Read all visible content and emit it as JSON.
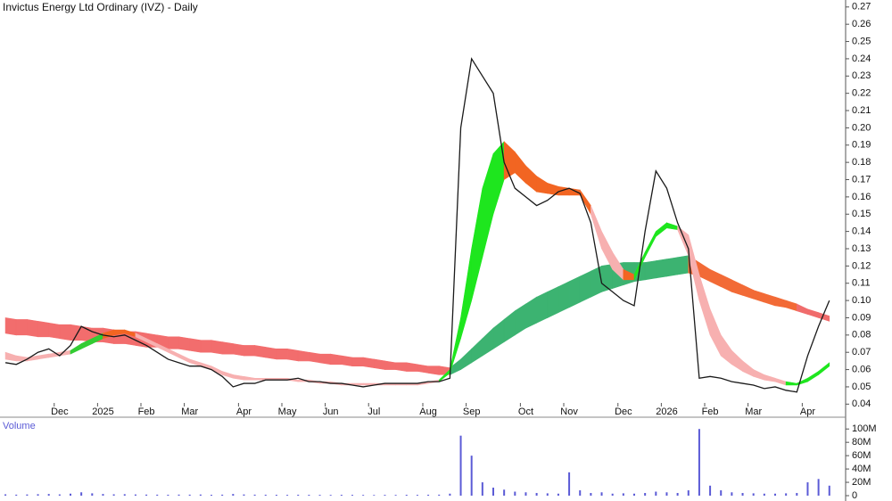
{
  "chart_data": {
    "type": "line",
    "title": "Invictus Energy Ltd Ordinary (IVZ) - Daily",
    "categories": [
      null,
      null,
      null,
      null,
      null,
      "Dec",
      null,
      null,
      null,
      "2025",
      null,
      null,
      null,
      "Feb",
      null,
      null,
      null,
      "Mar",
      null,
      null,
      null,
      null,
      "Apr",
      null,
      null,
      null,
      "May",
      null,
      null,
      null,
      "Jun",
      null,
      null,
      null,
      "Jul",
      null,
      null,
      null,
      null,
      "Aug",
      null,
      null,
      null,
      "Sep",
      null,
      null,
      null,
      null,
      "Oct",
      null,
      null,
      null,
      "Nov",
      null,
      null,
      null,
      null,
      "Dec",
      null,
      null,
      null,
      "2026",
      null,
      null,
      null,
      "Feb",
      null,
      null,
      null,
      "Mar",
      null,
      null,
      null,
      null,
      "Apr",
      null,
      null,
      null
    ],
    "series": [
      {
        "color": "#1a1a1a",
        "values": [
          0.064,
          0.063,
          0.066,
          0.07,
          0.072,
          0.068,
          0.074,
          0.085,
          0.082,
          0.08,
          0.079,
          0.08,
          0.077,
          0.074,
          0.07,
          0.066,
          0.064,
          0.062,
          0.062,
          0.06,
          0.056,
          0.05,
          0.052,
          0.052,
          0.054,
          0.054,
          0.054,
          0.055,
          0.053,
          0.053,
          0.052,
          0.052,
          0.051,
          0.05,
          0.051,
          0.052,
          0.052,
          0.052,
          0.052,
          0.053,
          0.053,
          0.055,
          0.2,
          0.24,
          0.23,
          0.22,
          0.18,
          0.165,
          0.16,
          0.155,
          0.158,
          0.163,
          0.165,
          0.162,
          0.145,
          0.11,
          0.105,
          0.1,
          0.097,
          0.14,
          0.175,
          0.165,
          0.145,
          0.13,
          0.055,
          0.056,
          0.055,
          0.053,
          0.052,
          0.051,
          0.049,
          0.05,
          0.048,
          0.047,
          0.068,
          0.085,
          0.1,
          null
        ]
      }
    ],
    "ribbons": [
      {
        "upper": [
          0.09,
          0.089,
          0.089,
          0.088,
          0.087,
          0.086,
          0.086,
          0.085,
          0.084,
          0.084,
          0.083,
          0.082,
          0.082,
          0.081,
          0.08,
          0.079,
          0.079,
          0.078,
          0.077,
          0.077,
          0.076,
          0.075,
          0.074,
          0.074,
          0.073,
          0.072,
          0.072,
          0.071,
          0.07,
          0.069,
          0.069,
          0.068,
          0.067,
          0.067,
          0.066,
          0.065,
          0.064,
          0.064,
          0.063,
          0.062,
          0.062,
          0.061,
          0.066,
          0.072,
          0.078,
          0.084,
          0.089,
          0.094,
          0.098,
          0.102,
          0.105,
          0.108,
          0.111,
          0.114,
          0.117,
          0.12,
          0.121,
          0.122,
          0.122,
          0.122,
          0.123,
          0.124,
          0.125,
          0.126,
          0.122,
          0.118,
          0.115,
          0.112,
          0.109,
          0.106,
          0.104,
          0.102,
          0.1,
          0.098,
          0.095,
          0.093,
          0.091,
          null
        ],
        "lower": [
          0.081,
          0.08,
          0.08,
          0.079,
          0.079,
          0.078,
          0.077,
          0.077,
          0.076,
          0.076,
          0.075,
          0.075,
          0.074,
          0.073,
          0.073,
          0.072,
          0.072,
          0.071,
          0.07,
          0.07,
          0.069,
          0.069,
          0.068,
          0.068,
          0.067,
          0.066,
          0.066,
          0.065,
          0.065,
          0.064,
          0.063,
          0.063,
          0.062,
          0.062,
          0.061,
          0.06,
          0.06,
          0.059,
          0.059,
          0.058,
          0.057,
          0.057,
          0.06,
          0.064,
          0.068,
          0.072,
          0.076,
          0.08,
          0.084,
          0.087,
          0.09,
          0.093,
          0.096,
          0.099,
          0.102,
          0.105,
          0.107,
          0.109,
          0.111,
          0.112,
          0.113,
          0.114,
          0.115,
          0.116,
          0.114,
          0.111,
          0.108,
          0.105,
          0.103,
          0.101,
          0.099,
          0.097,
          0.096,
          0.094,
          0.092,
          0.09,
          0.088,
          null
        ],
        "colors": [
          "#f26d6d",
          "#f26d6d",
          "#f26d6d",
          "#f26d6d",
          "#f26d6d",
          "#f26d6d",
          "#f26d6d",
          "#f26d6d",
          "#f26d6d",
          "#f26d6d",
          "#f26d6d",
          "#f26d6d",
          "#f26d6d",
          "#f26d6d",
          "#f26d6d",
          "#f26d6d",
          "#f26d6d",
          "#f26d6d",
          "#f26d6d",
          "#f26d6d",
          "#f26d6d",
          "#f26d6d",
          "#f26d6d",
          "#f26d6d",
          "#f26d6d",
          "#f26d6d",
          "#f26d6d",
          "#f26d6d",
          "#f26d6d",
          "#f26d6d",
          "#f26d6d",
          "#f26d6d",
          "#f26d6d",
          "#f26d6d",
          "#f26d6d",
          "#f26d6d",
          "#f26d6d",
          "#f26d6d",
          "#f26d6d",
          "#f26d6d",
          "#f26d6d",
          "#3cb371",
          "#3cb371",
          "#3cb371",
          "#3cb371",
          "#3cb371",
          "#3cb371",
          "#3cb371",
          "#3cb371",
          "#3cb371",
          "#3cb371",
          "#3cb371",
          "#3cb371",
          "#3cb371",
          "#3cb371",
          "#3cb371",
          "#3cb371",
          "#3cb371",
          "#3cb371",
          "#3cb371",
          "#3cb371",
          "#3cb371",
          "#3cb371",
          "#f26a36",
          "#f26a36",
          "#f26a36",
          "#f26a36",
          "#f26a36",
          "#f26a36",
          "#f26a36",
          "#f26a36",
          "#f26a36",
          "#f26a36",
          "#f06c6c",
          "#f06c6c",
          "#f06c6c",
          "#f06c6c",
          "#f06c6c"
        ]
      },
      {
        "upper": [
          0.07,
          0.068,
          0.067,
          0.068,
          0.069,
          0.07,
          0.071,
          0.075,
          0.078,
          0.081,
          0.083,
          0.083,
          0.081,
          0.078,
          0.075,
          0.072,
          0.069,
          0.066,
          0.064,
          0.062,
          0.059,
          0.057,
          0.056,
          0.055,
          0.055,
          0.055,
          0.055,
          0.054,
          0.054,
          0.053,
          0.053,
          0.052,
          0.052,
          0.052,
          0.052,
          0.052,
          0.052,
          0.052,
          0.052,
          0.053,
          0.054,
          0.06,
          0.09,
          0.13,
          0.165,
          0.185,
          0.192,
          0.186,
          0.178,
          0.172,
          0.168,
          0.166,
          0.165,
          0.164,
          0.155,
          0.14,
          0.128,
          0.118,
          0.115,
          0.128,
          0.14,
          0.145,
          0.143,
          0.138,
          0.115,
          0.095,
          0.08,
          0.071,
          0.065,
          0.06,
          0.057,
          0.055,
          0.053,
          0.052,
          0.055,
          0.059,
          0.064,
          null
        ],
        "lower": [
          0.066,
          0.065,
          0.065,
          0.066,
          0.067,
          0.068,
          0.069,
          0.072,
          0.075,
          0.078,
          0.08,
          0.081,
          0.079,
          0.076,
          0.073,
          0.07,
          0.067,
          0.064,
          0.062,
          0.06,
          0.057,
          0.055,
          0.054,
          0.054,
          0.054,
          0.054,
          0.054,
          0.053,
          0.053,
          0.052,
          0.052,
          0.051,
          0.051,
          0.051,
          0.051,
          0.051,
          0.051,
          0.051,
          0.051,
          0.052,
          0.053,
          0.058,
          0.078,
          0.1,
          0.125,
          0.15,
          0.17,
          0.174,
          0.168,
          0.163,
          0.162,
          0.161,
          0.161,
          0.161,
          0.15,
          0.13,
          0.118,
          0.112,
          0.112,
          0.125,
          0.137,
          0.142,
          0.141,
          0.126,
          0.1,
          0.08,
          0.068,
          0.063,
          0.059,
          0.056,
          0.054,
          0.053,
          0.051,
          0.051,
          0.053,
          0.057,
          0.062,
          null
        ],
        "colors": [
          "#f7b0b0",
          "#f7b0b0",
          "#f7b0b0",
          "#f7b0b0",
          "#f7b0b0",
          "#f7b0b0",
          "#33cc33",
          "#33cc33",
          "#33cc33",
          "#f26522",
          "#f26522",
          "#f26522",
          "#f7b0b0",
          "#f7b0b0",
          "#f7b0b0",
          "#f7b0b0",
          "#f7b0b0",
          "#f7b0b0",
          "#f7b0b0",
          "#f7b0b0",
          "#f7b0b0",
          "#f7b0b0",
          "#f7b0b0",
          "#f7b0b0",
          "#f7b0b0",
          "#f7b0b0",
          "#f7b0b0",
          "#f7b0b0",
          "#f7b0b0",
          "#f7b0b0",
          "#f7b0b0",
          "#f7b0b0",
          "#f7b0b0",
          "#f7b0b0",
          "#f7b0b0",
          "#f7b0b0",
          "#f7b0b0",
          "#f7b0b0",
          "#f7b0b0",
          "#f7b0b0",
          "#1ee61e",
          "#1ee61e",
          "#1ee61e",
          "#1ee61e",
          "#1ee61e",
          "#1ee61e",
          "#f26522",
          "#f26522",
          "#f26522",
          "#f26522",
          "#f26522",
          "#f26522",
          "#f26522",
          "#f26522",
          "#f7b0b0",
          "#f7b0b0",
          "#f7b0b0",
          "#f26522",
          "#1ee61e",
          "#1ee61e",
          "#1ee61e",
          "#1ee61e",
          "#f7b0b0",
          "#f7b0b0",
          "#f7b0b0",
          "#f7b0b0",
          "#f7b0b0",
          "#f7b0b0",
          "#f7b0b0",
          "#f7b0b0",
          "#f7b0b0",
          "#f7b0b0",
          "#1ee61e",
          "#1ee61e",
          "#1ee61e",
          "#1ee61e",
          "#1ee61e",
          "#1ee61e"
        ]
      }
    ],
    "ylim": [
      0.035,
      0.273
    ],
    "yticks": [
      0.04,
      0.05,
      0.06,
      0.07,
      0.08,
      0.09,
      {
        "value": 0.1,
        "label": "0.10"
      },
      0.11,
      0.12,
      0.13,
      0.14,
      0.15,
      0.16,
      0.17,
      0.18,
      0.19,
      {
        "value": 0.2,
        "label": "0.20"
      },
      0.21,
      0.22,
      0.23,
      0.24,
      0.25,
      0.26,
      0.27
    ],
    "volume": {
      "label": "Volume",
      "color": "#5b5bd6",
      "values": [
        2000000,
        1500000,
        1800000,
        2200000,
        2500000,
        1900000,
        3000000,
        5000000,
        3500000,
        2500000,
        2000000,
        2200000,
        1800000,
        1600000,
        1500000,
        1400000,
        1600000,
        1500000,
        1700000,
        1300000,
        1500000,
        2500000,
        1800000,
        1500000,
        1400000,
        1300000,
        1200000,
        1400000,
        1300000,
        1200000,
        1100000,
        1300000,
        1200000,
        1100000,
        1000000,
        1200000,
        1100000,
        1300000,
        1200000,
        1400000,
        1500000,
        3000000,
        90000000,
        60000000,
        20000000,
        12000000,
        9000000,
        6000000,
        5000000,
        4000000,
        3500000,
        3000000,
        35000000,
        8000000,
        4000000,
        5000000,
        3000000,
        3500000,
        3000000,
        4000000,
        6000000,
        5000000,
        4000000,
        8000000,
        100000000,
        15000000,
        8000000,
        5000000,
        4000000,
        3500000,
        3000000,
        3000000,
        3500000,
        4000000,
        20000000,
        25000000,
        15000000,
        null
      ],
      "ylim": [
        0,
        115000000
      ],
      "yticks": [
        0,
        {
          "value": 20000000,
          "label": "20M"
        },
        {
          "value": 40000000,
          "label": "40M"
        },
        {
          "value": 60000000,
          "label": "60M"
        },
        {
          "value": 80000000,
          "label": "80M"
        },
        {
          "value": 100000000,
          "label": "100M"
        }
      ]
    }
  }
}
